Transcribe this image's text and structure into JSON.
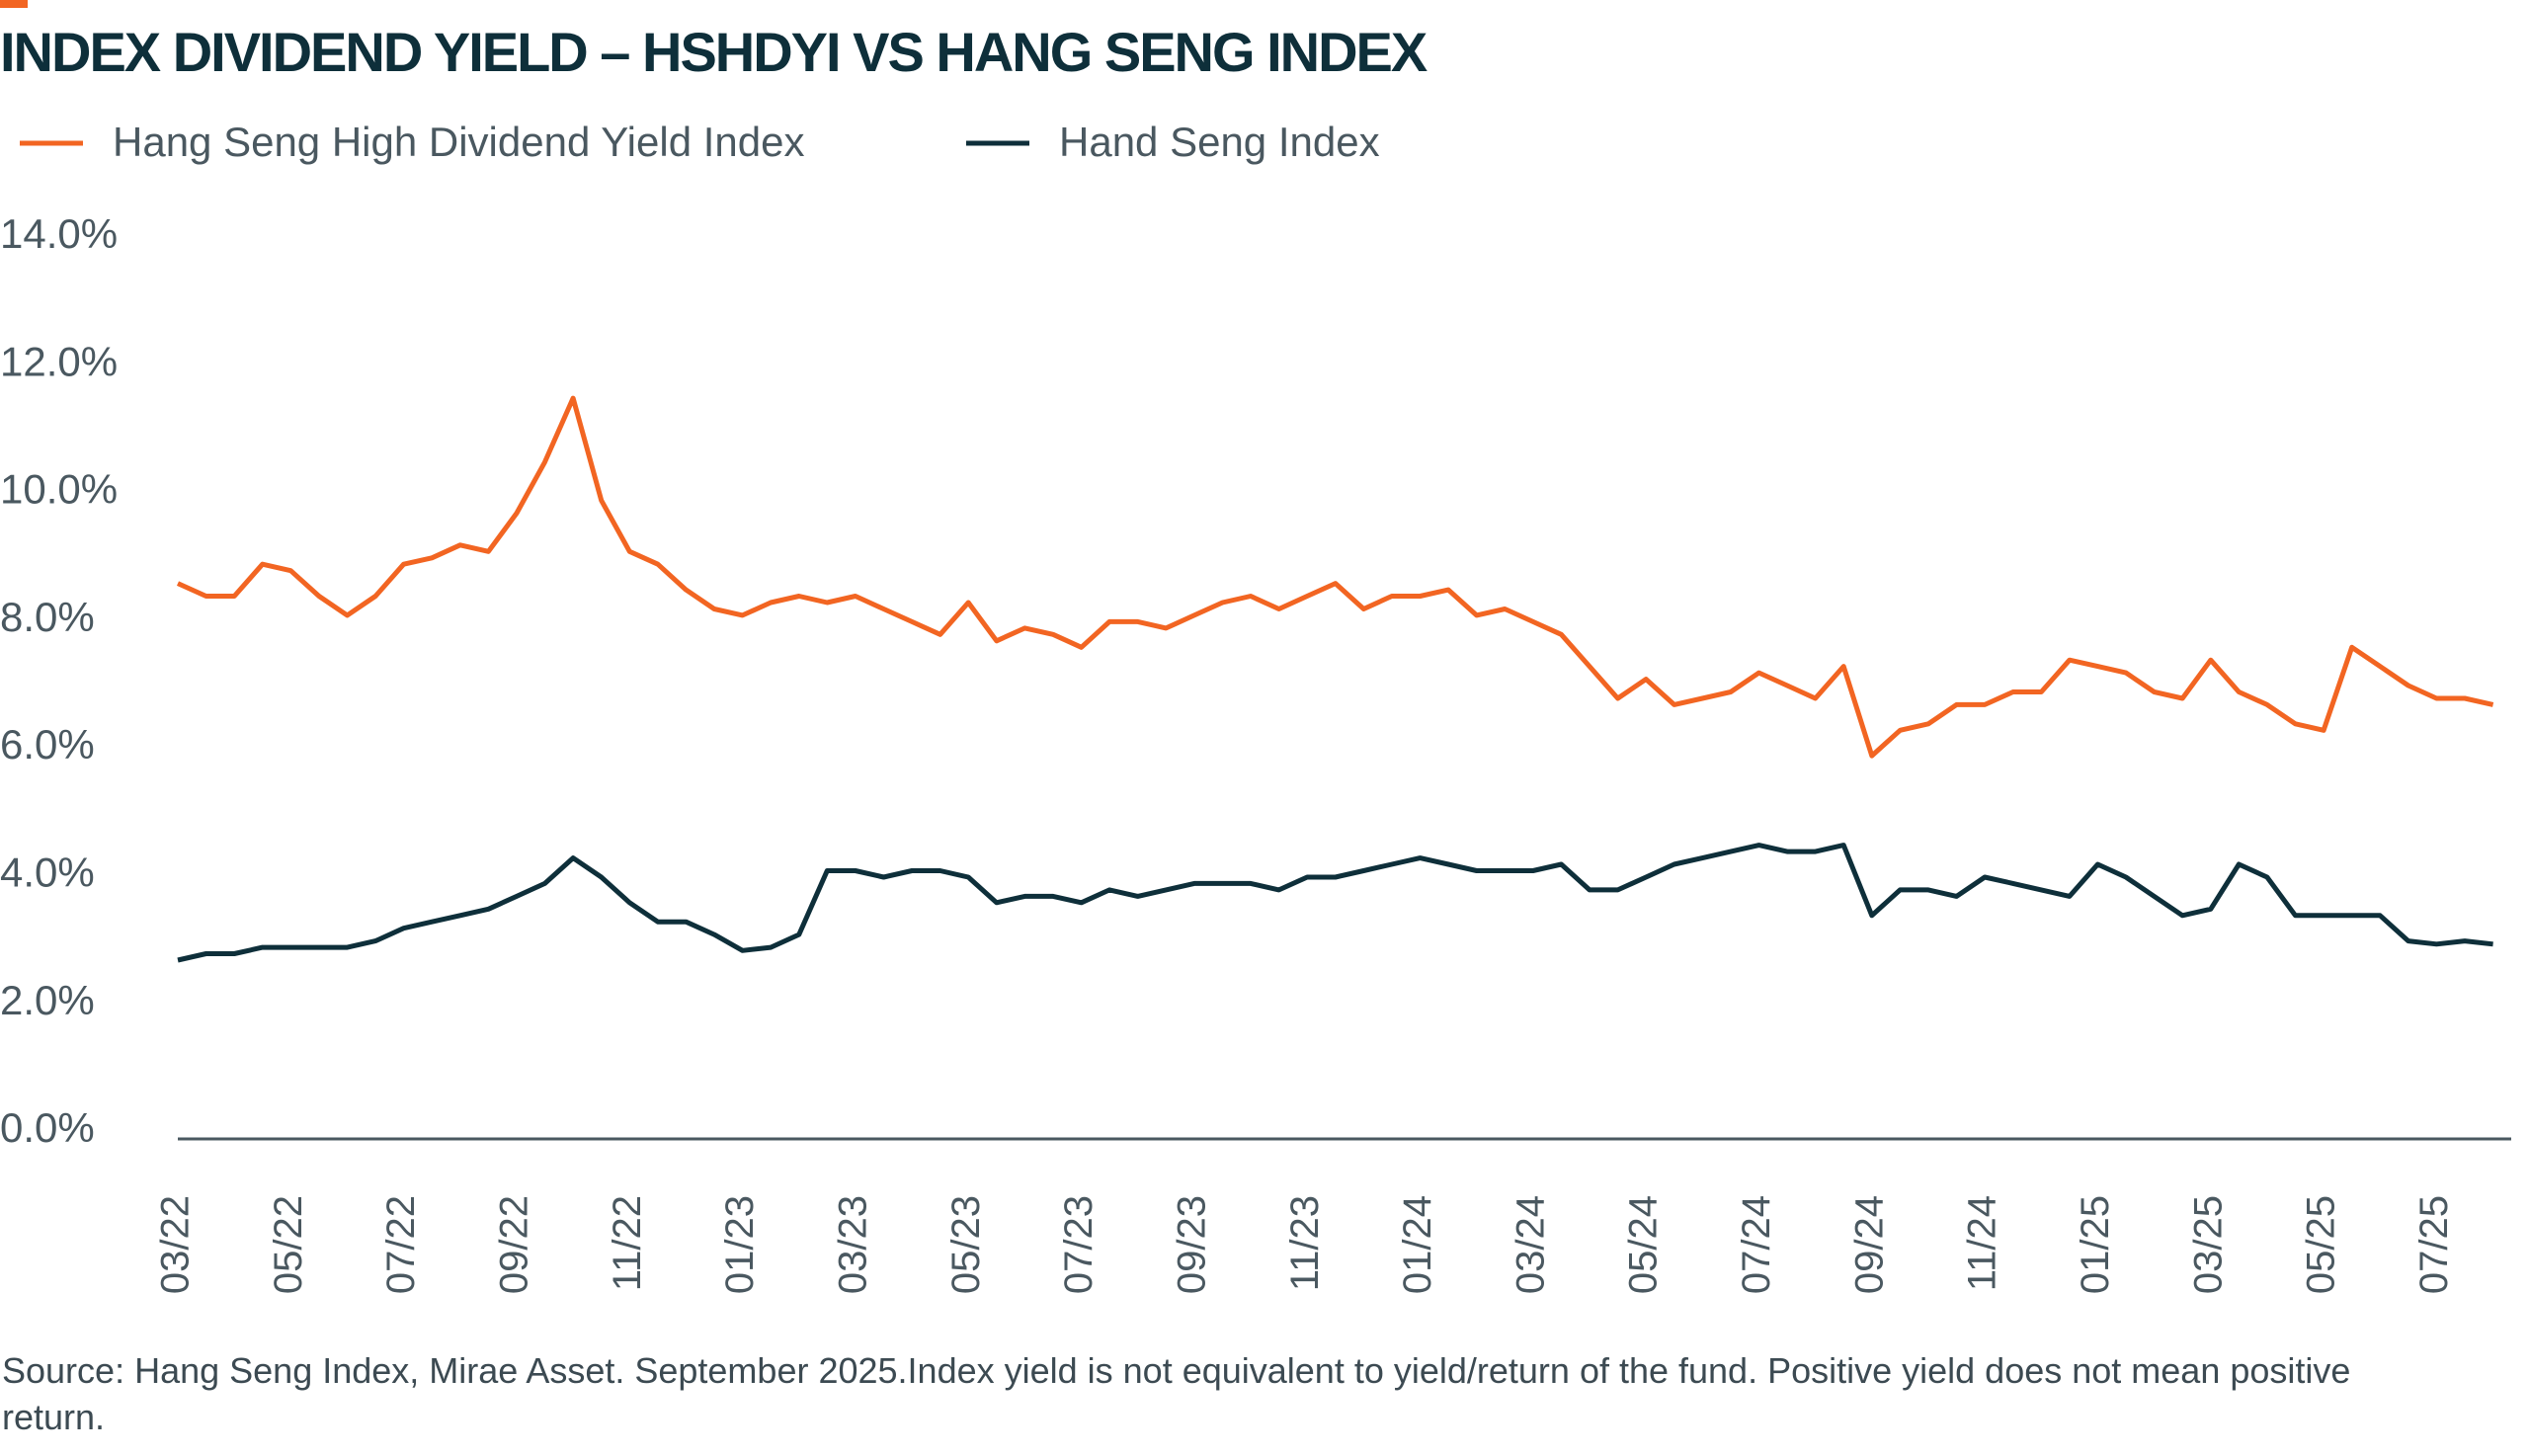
{
  "chart_data": {
    "type": "line",
    "title": "INDEX DIVIDEND YIELD – HSHDYI VS HANG SENG INDEX",
    "note": "Source: Hang Seng Index, Mirae Asset. September 2025.Index yield is not equivalent to yield/return of the fund. Positive yield does not mean positive return.",
    "categories": [
      "03/22",
      null,
      null,
      null,
      "05/22",
      null,
      null,
      null,
      "07/22",
      null,
      null,
      null,
      "09/22",
      null,
      null,
      null,
      "11/22",
      null,
      null,
      null,
      "01/23",
      null,
      null,
      null,
      "03/23",
      null,
      null,
      null,
      "05/23",
      null,
      null,
      null,
      "07/23",
      null,
      null,
      null,
      "09/23",
      null,
      null,
      null,
      "11/23",
      null,
      null,
      null,
      "01/24",
      null,
      null,
      null,
      "03/24",
      null,
      null,
      null,
      "05/24",
      null,
      null,
      null,
      "07/24",
      null,
      null,
      null,
      "09/24",
      null,
      null,
      null,
      "11/24",
      null,
      null,
      null,
      "01/25",
      null,
      null,
      null,
      "03/25",
      null,
      null,
      null,
      "05/25",
      null,
      null,
      null,
      "07/25",
      null,
      null
    ],
    "series": [
      {
        "name": "Hang Seng High Dividend Yield Index",
        "color": "#f26522",
        "values": [
          8.7,
          8.5,
          8.5,
          9.0,
          8.9,
          8.5,
          8.2,
          8.5,
          9.0,
          9.1,
          9.3,
          9.2,
          9.8,
          10.6,
          11.6,
          10.0,
          9.2,
          9.0,
          8.6,
          8.3,
          8.2,
          8.4,
          8.5,
          8.4,
          8.5,
          8.3,
          8.1,
          7.9,
          8.4,
          7.8,
          8.0,
          7.9,
          7.7,
          8.1,
          8.1,
          8.0,
          8.2,
          8.4,
          8.5,
          8.3,
          8.5,
          8.7,
          8.3,
          8.5,
          8.5,
          8.6,
          8.2,
          8.3,
          8.1,
          7.9,
          7.4,
          6.9,
          7.2,
          6.8,
          6.9,
          7.0,
          7.3,
          7.1,
          6.9,
          7.4,
          6.0,
          6.4,
          6.5,
          6.8,
          6.8,
          7.0,
          7.0,
          7.5,
          7.4,
          7.3,
          7.0,
          6.9,
          7.5,
          7.0,
          6.8,
          6.5,
          6.4,
          7.7,
          7.4,
          7.1,
          6.9,
          6.9,
          6.8
        ]
      },
      {
        "name": "Hand Seng Index",
        "color": "#0e2f3a",
        "values": [
          2.8,
          2.9,
          2.9,
          3.0,
          3.0,
          3.0,
          3.0,
          3.1,
          3.3,
          3.4,
          3.5,
          3.6,
          3.8,
          4.0,
          4.4,
          4.1,
          3.7,
          3.4,
          3.4,
          3.2,
          2.95,
          3.0,
          3.2,
          4.2,
          4.2,
          4.1,
          4.2,
          4.2,
          4.1,
          3.7,
          3.8,
          3.8,
          3.7,
          3.9,
          3.8,
          3.9,
          4.0,
          4.0,
          4.0,
          3.9,
          4.1,
          4.1,
          4.2,
          4.3,
          4.4,
          4.3,
          4.2,
          4.2,
          4.2,
          4.3,
          3.9,
          3.9,
          4.1,
          4.3,
          4.4,
          4.5,
          4.6,
          4.5,
          4.5,
          4.6,
          3.5,
          3.9,
          3.9,
          3.8,
          4.1,
          4.0,
          3.9,
          3.8,
          4.3,
          4.1,
          3.8,
          3.5,
          3.6,
          4.3,
          4.1,
          3.5,
          3.5,
          3.5,
          3.5,
          3.1,
          3.05,
          3.1,
          3.05
        ]
      }
    ],
    "ylim": [
      0,
      14
    ],
    "yticks": [
      {
        "value": 0,
        "label": "0.0%"
      },
      {
        "value": 2,
        "label": "2.0%"
      },
      {
        "value": 4,
        "label": "4.0%"
      },
      {
        "value": 6,
        "label": "6.0%"
      },
      {
        "value": 8,
        "label": "8.0%"
      },
      {
        "value": 10,
        "label": "10.0%"
      },
      {
        "value": 12,
        "label": "12.0%"
      },
      {
        "value": 14,
        "label": "14.0%"
      }
    ],
    "grid": false,
    "legend": "top-left"
  }
}
